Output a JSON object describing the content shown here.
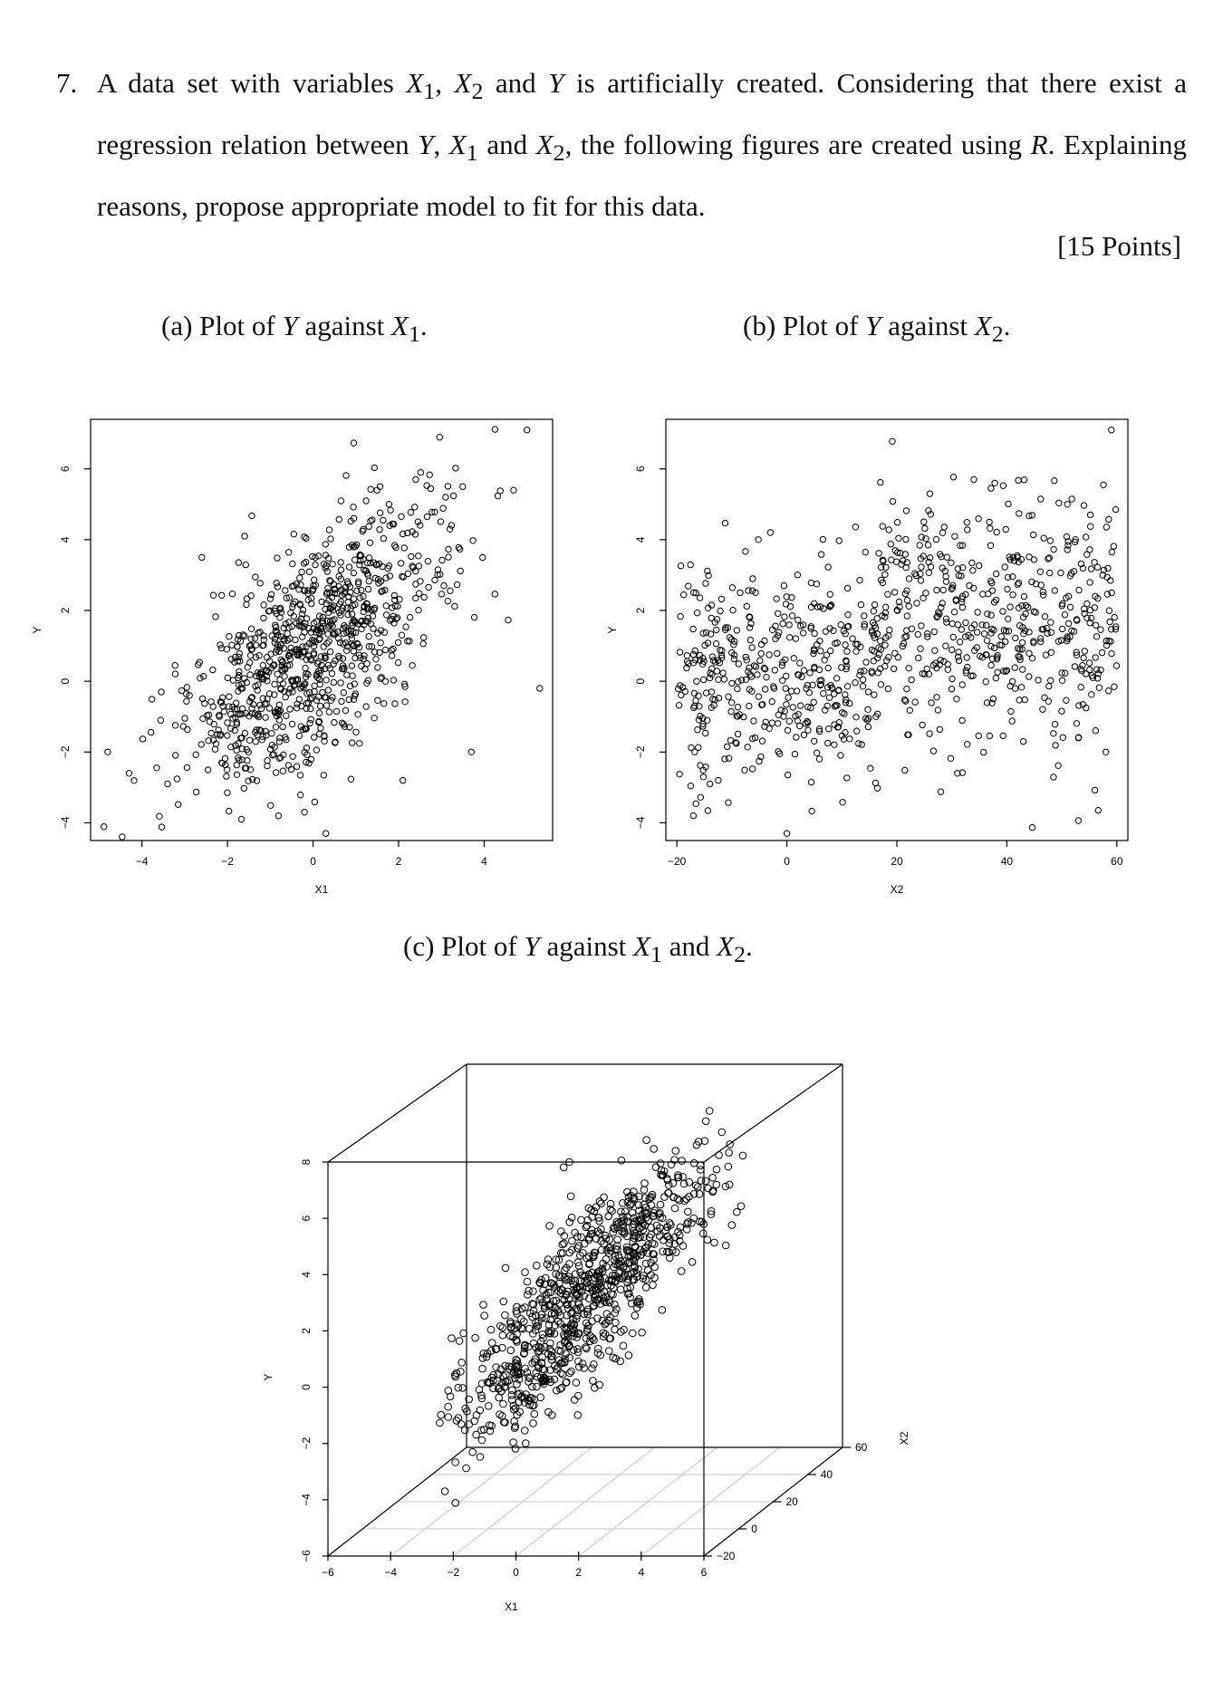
{
  "question": {
    "number": "7.",
    "text": "A data set with variables X1, X2 and Y is artificially created. Considering that there exist a regression relation between Y, X1 and X2, the following figures are created using R. Explaining reasons, propose appropriate model to fit for this data.",
    "points": "[15 Points]"
  },
  "captions": {
    "a": "(a) Plot of Y against X1.",
    "b": "(b) Plot of Y against X2.",
    "c": "(c) Plot of Y against X1 and X2."
  },
  "chart_data": [
    {
      "type": "scatter",
      "xlabel": "X1",
      "ylabel": "Y",
      "xlim": [
        -5.2,
        5.6
      ],
      "ylim": [
        -4.5,
        7.4
      ],
      "xticks": [
        -4,
        -2,
        0,
        2,
        4
      ],
      "yticks": [
        -4,
        -2,
        0,
        2,
        4,
        6
      ],
      "seed": 101,
      "n_points": 900,
      "points": [
        [
          -4.8,
          -2.0
        ],
        [
          -4.3,
          -2.6
        ],
        [
          -3.4,
          -2.9
        ],
        [
          5.0,
          7.1
        ],
        [
          5.3,
          -0.2
        ],
        [
          3.7,
          -2.0
        ],
        [
          2.4,
          5.7
        ],
        [
          3.1,
          5.2
        ],
        [
          2.1,
          -2.8
        ],
        [
          0.3,
          -4.3
        ],
        [
          -1.6,
          4.1
        ],
        [
          -2.6,
          3.5
        ],
        [
          3.5,
          5.5
        ],
        [
          -0.2,
          -3.7
        ]
      ],
      "background": "#ffffff",
      "marker": "open-circle"
    },
    {
      "type": "scatter",
      "xlabel": "X2",
      "ylabel": "Y",
      "xlim": [
        -22,
        62
      ],
      "ylim": [
        -4.5,
        7.4
      ],
      "xticks": [
        -20,
        0,
        20,
        40,
        60
      ],
      "yticks": [
        -4,
        -2,
        0,
        2,
        4,
        6
      ],
      "seed": 202,
      "n_points": 900,
      "points": [
        [
          59,
          7.1
        ],
        [
          31,
          -2.6
        ],
        [
          0,
          -4.3
        ],
        [
          53,
          -1.6
        ],
        [
          58,
          -2.0
        ],
        [
          34,
          5.7
        ],
        [
          26,
          5.3
        ],
        [
          -17,
          -3.8
        ],
        [
          -14,
          -2.9
        ],
        [
          -3,
          4.2
        ],
        [
          51,
          5.0
        ],
        [
          43,
          -1.7
        ]
      ],
      "background": "#ffffff",
      "marker": "open-circle"
    },
    {
      "type": "scatter",
      "view": "3d",
      "xlabel": "X1",
      "ylabel": "Y",
      "zlabel": "X2",
      "xlim": [
        -6,
        6
      ],
      "ylim": [
        -6,
        8
      ],
      "zlim": [
        -20,
        60
      ],
      "xticks": [
        -6,
        -4,
        -2,
        0,
        2,
        4,
        6
      ],
      "yticks": [
        -6,
        -4,
        -2,
        0,
        2,
        4,
        6,
        8
      ],
      "zticks": [
        -20,
        0,
        20,
        40,
        60
      ],
      "seed": 303,
      "n_points": 900,
      "background": "#ffffff",
      "marker": "open-circle"
    }
  ]
}
